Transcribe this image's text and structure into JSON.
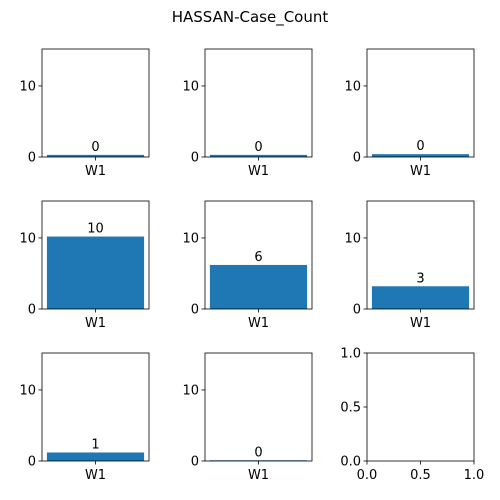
{
  "figure": {
    "title": "HASSAN-Case_Count",
    "bar_color": "#1f77b4"
  },
  "chart_data": [
    {
      "type": "bar",
      "categories": [
        "W1"
      ],
      "values": [
        0.3
      ],
      "value_label": "0",
      "ylim": [
        0,
        15.2
      ],
      "yticks": [
        0,
        10
      ]
    },
    {
      "type": "bar",
      "categories": [
        "W1"
      ],
      "values": [
        0.3
      ],
      "value_label": "0",
      "ylim": [
        0,
        15.2
      ],
      "yticks": [
        0,
        10
      ]
    },
    {
      "type": "bar",
      "categories": [
        "W1"
      ],
      "values": [
        0.4
      ],
      "value_label": "0",
      "ylim": [
        0,
        15.2
      ],
      "yticks": [
        0,
        10
      ]
    },
    {
      "type": "bar",
      "categories": [
        "W1"
      ],
      "values": [
        10.2
      ],
      "value_label": "10",
      "ylim": [
        0,
        15.2
      ],
      "yticks": [
        0,
        10
      ]
    },
    {
      "type": "bar",
      "categories": [
        "W1"
      ],
      "values": [
        6.2
      ],
      "value_label": "6",
      "ylim": [
        0,
        15.2
      ],
      "yticks": [
        0,
        10
      ]
    },
    {
      "type": "bar",
      "categories": [
        "W1"
      ],
      "values": [
        3.2
      ],
      "value_label": "3",
      "ylim": [
        0,
        15.2
      ],
      "yticks": [
        0,
        10
      ]
    },
    {
      "type": "bar",
      "categories": [
        "W1"
      ],
      "values": [
        1.2
      ],
      "value_label": "1",
      "ylim": [
        0,
        15.2
      ],
      "yticks": [
        0,
        10
      ]
    },
    {
      "type": "bar",
      "categories": [
        "W1"
      ],
      "values": [
        0.1
      ],
      "value_label": "0",
      "ylim": [
        0,
        15.2
      ],
      "yticks": [
        0,
        10
      ]
    },
    {
      "type": "empty",
      "xlim": [
        0,
        1
      ],
      "ylim": [
        0,
        1
      ],
      "xticks": [
        "0.0",
        "0.5",
        "1.0"
      ],
      "yticks": [
        "0.0",
        "0.5",
        "1.0"
      ]
    }
  ]
}
